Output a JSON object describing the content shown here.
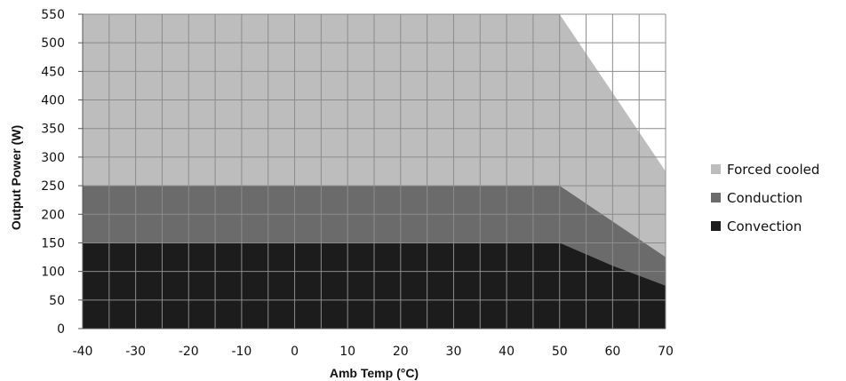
{
  "chart_data": {
    "type": "area",
    "xlabel": "Amb Temp (°C)",
    "ylabel": "Output Power (W)",
    "xlim": [
      -40,
      70
    ],
    "ylim": [
      0,
      550
    ],
    "x_ticks": [
      -40,
      -30,
      -20,
      -10,
      0,
      10,
      20,
      30,
      40,
      50,
      60,
      70
    ],
    "y_ticks": [
      0,
      50,
      100,
      150,
      200,
      250,
      300,
      350,
      400,
      450,
      500,
      550
    ],
    "grid": true,
    "legend_position": "right",
    "series": [
      {
        "name": "Forced cooled",
        "color": "#bdbdbd",
        "points": [
          [
            -40,
            550
          ],
          [
            50,
            550
          ],
          [
            70,
            275
          ]
        ]
      },
      {
        "name": "Conduction",
        "color": "#6b6b6b",
        "points": [
          [
            -40,
            250
          ],
          [
            50,
            250
          ],
          [
            70,
            125
          ]
        ]
      },
      {
        "name": "Convection",
        "color": "#1c1c1c",
        "points": [
          [
            -40,
            150
          ],
          [
            50,
            150
          ],
          [
            60,
            110
          ],
          [
            70,
            75
          ]
        ]
      }
    ]
  }
}
